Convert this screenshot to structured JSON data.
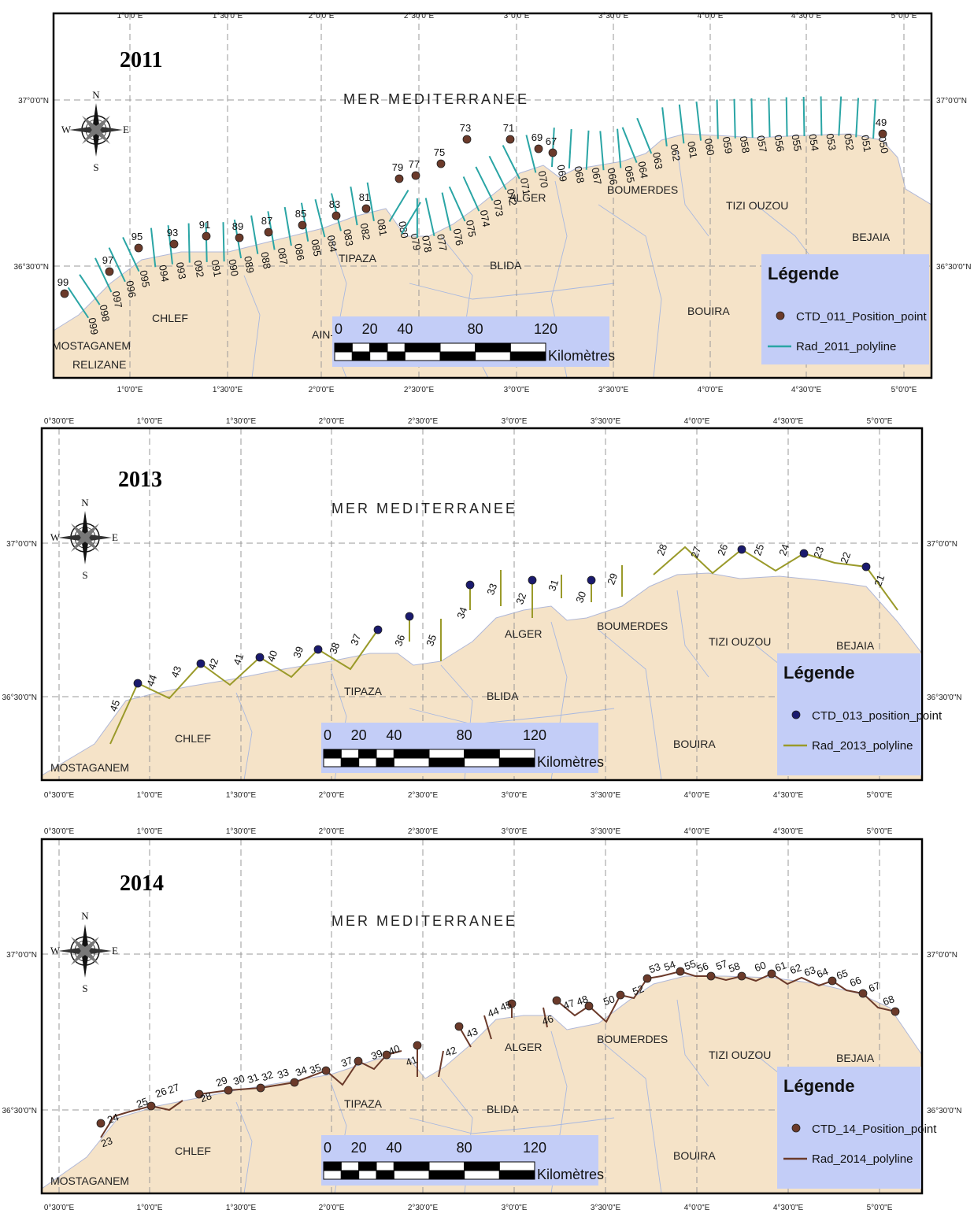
{
  "panels": [
    {
      "year": "2011",
      "sea_label": "MER MEDITERRANEE",
      "lon_ticks_top": [
        "1°0'0\"E",
        "1°30'0\"E",
        "2°0'0\"E",
        "2°30'0\"E",
        "3°0'0\"E",
        "3°30'0\"E",
        "4°0'0\"E",
        "4°30'0\"E",
        "5°0'0\"E"
      ],
      "lon_ticks_bottom": [
        "1°0'0\"E",
        "1°30'0\"E",
        "2°0'0\"E",
        "2°30'0\"E",
        "3°0'0\"E",
        "3°30'0\"E",
        "4°0'0\"E",
        "4°30'0\"E",
        "5°0'0\"E"
      ],
      "lat_ticks": [
        "37°0'0\"N",
        "36°30'0\"N"
      ],
      "places": [
        "ALGER",
        "BOUMERDES",
        "TIZI OUZOU",
        "BEJAIA",
        "TIPAZA",
        "BLIDA",
        "CHLEF",
        "BOUIRA",
        "AIN-D",
        "MOSTAGANEM",
        "RELIZANE"
      ],
      "station_points": [
        "99",
        "97",
        "95",
        "93",
        "91",
        "89",
        "87",
        "85",
        "83",
        "81",
        "79",
        "77",
        "75",
        "73",
        "71",
        "69",
        "67",
        "49"
      ],
      "radial_labels": [
        "099",
        "098",
        "097",
        "096",
        "095",
        "094",
        "093",
        "092",
        "091",
        "090",
        "089",
        "088",
        "087",
        "086",
        "085",
        "084",
        "083",
        "082",
        "081",
        "080",
        "079",
        "078",
        "077",
        "076",
        "075",
        "074",
        "073",
        "072",
        "071",
        "070",
        "069",
        "068",
        "067",
        "066",
        "065",
        "064",
        "063",
        "062",
        "061",
        "060",
        "059",
        "058",
        "057",
        "056",
        "055",
        "054",
        "053",
        "052",
        "051",
        "050"
      ],
      "legend": {
        "title": "Légende",
        "point": "CTD_011_Position_point",
        "line": "Rad_2011_polyline"
      },
      "scale": {
        "ticks": [
          "0",
          "20",
          "40",
          "80",
          "120"
        ],
        "unit": "Kilomètres"
      },
      "compass": [
        "N",
        "S",
        "E",
        "W"
      ],
      "colors": {
        "point": "#6b3a2a",
        "line": "#2aa5a5"
      }
    },
    {
      "year": "2013",
      "sea_label": "MER MEDITERRANEE",
      "lon_ticks_top": [
        "0°30'0\"E",
        "1°0'0\"E",
        "1°30'0\"E",
        "2°0'0\"E",
        "2°30'0\"E",
        "3°0'0\"E",
        "3°30'0\"E",
        "4°0'0\"E",
        "4°30'0\"E",
        "5°0'0\"E"
      ],
      "lon_ticks_bottom": [
        "0°30'0\"E",
        "1°0'0\"E",
        "1°30'0\"E",
        "2°0'0\"E",
        "2°30'0\"E",
        "3°0'0\"E",
        "3°30'0\"E",
        "4°0'0\"E",
        "4°30'0\"E",
        "5°0'0\"E"
      ],
      "lat_ticks": [
        "37°0'0\"N",
        "36°30'0\"N"
      ],
      "places": [
        "ALGER",
        "BOUMERDES",
        "TIZI OUZOU",
        "BEJAIA",
        "TIPAZA",
        "BLIDA",
        "CHLEF",
        "BOUIRA",
        "MOSTAGANEM"
      ],
      "station_labels": [
        "45",
        "44",
        "43",
        "42",
        "41",
        "40",
        "39",
        "38",
        "37",
        "36",
        "35",
        "34",
        "33",
        "32",
        "31",
        "30",
        "29",
        "28",
        "27",
        "26",
        "25",
        "24",
        "23",
        "22",
        "21"
      ],
      "legend": {
        "title": "Légende",
        "point": "CTD_013_position_point",
        "line": "Rad_2013_polyline"
      },
      "scale": {
        "ticks": [
          "0",
          "20",
          "40",
          "80",
          "120"
        ],
        "unit": "Kilomètres"
      },
      "compass": [
        "N",
        "S",
        "E",
        "W"
      ],
      "colors": {
        "point": "#1a1a6e",
        "line": "#9a9a2a"
      }
    },
    {
      "year": "2014",
      "sea_label": "MER MEDITERRANEE",
      "lon_ticks_top": [
        "0°30'0\"E",
        "1°0'0\"E",
        "1°30'0\"E",
        "2°0'0\"E",
        "2°30'0\"E",
        "3°0'0\"E",
        "3°30'0\"E",
        "4°0'0\"E",
        "4°30'0\"E",
        "5°0'0\"E"
      ],
      "lon_ticks_bottom": [
        "0°30'0\"E",
        "1°0'0\"E",
        "1°30'0\"E",
        "2°0'0\"E",
        "2°30'0\"E",
        "3°0'0\"E",
        "3°30'0\"E",
        "4°0'0\"E",
        "4°30'0\"E",
        "5°0'0\"E"
      ],
      "lat_ticks": [
        "37°0'0\"N",
        "36°30'0\"N"
      ],
      "places": [
        "ALGER",
        "BOUMERDES",
        "TIZI OUZOU",
        "BEJAIA",
        "TIPAZA",
        "BLIDA",
        "CHLEF",
        "BOUIRA",
        "MOSTAGANEM"
      ],
      "station_labels": [
        "23",
        "24",
        "25",
        "26",
        "27",
        "28",
        "29",
        "30",
        "31",
        "32",
        "33",
        "34",
        "35",
        "37",
        "39",
        "40",
        "41",
        "42",
        "43",
        "44",
        "45",
        "46",
        "47",
        "48",
        "50",
        "52",
        "53",
        "54",
        "55",
        "56",
        "57",
        "58",
        "60",
        "61",
        "62",
        "63",
        "64",
        "65",
        "66",
        "67",
        "68"
      ],
      "legend": {
        "title": "Légende",
        "point": "CTD_14_Position_point",
        "line": "Rad_2014_polyline"
      },
      "scale": {
        "ticks": [
          "0",
          "20",
          "40",
          "80",
          "120"
        ],
        "unit": "Kilomètres"
      },
      "compass": [
        "N",
        "S",
        "E",
        "W"
      ],
      "colors": {
        "point": "#6b3a2a",
        "line": "#6b3a2a"
      }
    }
  ],
  "colors": {
    "land": "#f5e3c8",
    "sea": "#ffffff",
    "legend_bg": "#c3cdf7",
    "grid": "#9a9a9a",
    "border": "#b0b8d8"
  }
}
